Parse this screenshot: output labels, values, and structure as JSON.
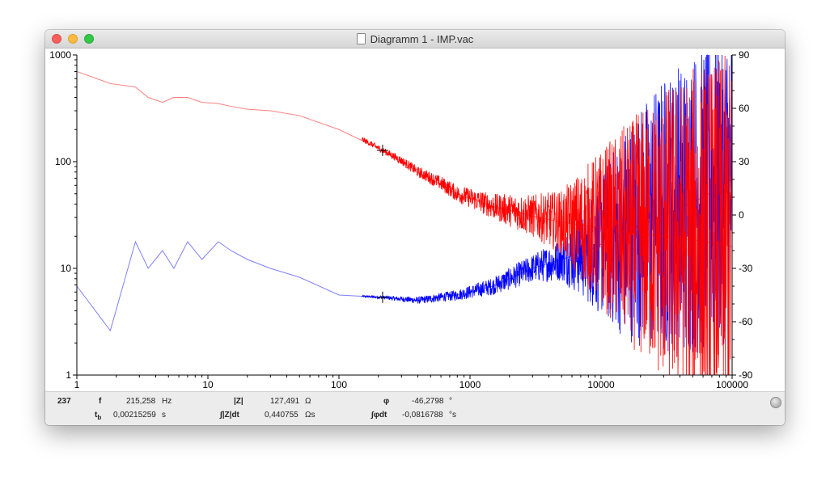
{
  "window": {
    "title": "Diagramm 1 - IMP.vac"
  },
  "chart_data": {
    "type": "line",
    "x_scale": "log",
    "xlim": [
      1,
      100000
    ],
    "x_ticks": [
      "1",
      "10",
      "100",
      "1000",
      "10000",
      "100000"
    ],
    "left_axis": {
      "scale": "log",
      "ylim": [
        1,
        1000
      ],
      "ticks": [
        "1",
        "10",
        "100",
        "1000"
      ]
    },
    "right_axis": {
      "scale": "linear",
      "ylim": [
        -90,
        90
      ],
      "ticks": [
        "90",
        "60",
        "30",
        "0",
        "-30",
        "-60",
        "-90"
      ]
    },
    "grid": false,
    "legend": "none",
    "series": [
      {
        "axis": "left",
        "color": "#ff0000",
        "x": [
          1,
          1.8,
          2.8,
          3.5,
          4.5,
          5.5,
          7,
          9,
          12,
          15,
          20,
          30,
          50,
          100,
          215,
          400,
          800,
          1500,
          3000,
          5000,
          8000,
          15000,
          30000,
          60000,
          100000
        ],
        "y": [
          700,
          540,
          500,
          400,
          360,
          400,
          400,
          360,
          350,
          330,
          310,
          300,
          270,
          200,
          127.5,
          80,
          50,
          38,
          31,
          27,
          25,
          22,
          20,
          18,
          16
        ],
        "noise": [
          0,
          0,
          0,
          0,
          0,
          0,
          0,
          0,
          0,
          0,
          0,
          0,
          0,
          0.02,
          0.03,
          0.05,
          0.08,
          0.12,
          0.2,
          0.3,
          0.6,
          1.0,
          1.4,
          1.7,
          1.8
        ]
      },
      {
        "axis": "right",
        "color": "#0000ff",
        "x": [
          1,
          1.8,
          2.8,
          3.5,
          4.5,
          5.5,
          7,
          9,
          12,
          15,
          20,
          30,
          50,
          100,
          215,
          400,
          800,
          1500,
          3000,
          5000,
          8000,
          15000,
          30000,
          60000,
          100000
        ],
        "y": [
          -40,
          -65,
          -15,
          -30,
          -20,
          -30,
          -15,
          -25,
          -15,
          -20,
          -25,
          -30,
          -35,
          -45,
          -46.3,
          -48,
          -45,
          -40,
          -30,
          -25,
          -20,
          -10,
          0,
          10,
          20
        ],
        "noise": [
          0,
          0,
          0,
          0,
          0,
          0,
          0,
          0,
          0,
          0,
          0,
          0,
          0,
          0,
          1,
          2,
          3,
          5,
          8,
          12,
          30,
          60,
          80,
          90,
          90
        ]
      }
    ],
    "cursor": {
      "x": 215.258,
      "y_left": 127.491,
      "y_right": -46.2798
    }
  },
  "status": {
    "index": "237",
    "f_label": "f",
    "f_value": "215,258",
    "f_unit": "Hz",
    "tb_label": "t",
    "tb_sub": "b",
    "tb_value": "0,00215259",
    "tb_unit": "s",
    "z_label": "|Z|",
    "z_value": "127,491",
    "z_unit": "Ω",
    "zint_label": "∫|Z|dt",
    "zint_value": "0,440755",
    "zint_unit": "Ωs",
    "phi_label": "φ",
    "phi_value": "-46,2798",
    "phi_unit": "°",
    "phiint_label": "∫φdt",
    "phiint_value": "-0,0816788",
    "phiint_unit": "°s"
  }
}
